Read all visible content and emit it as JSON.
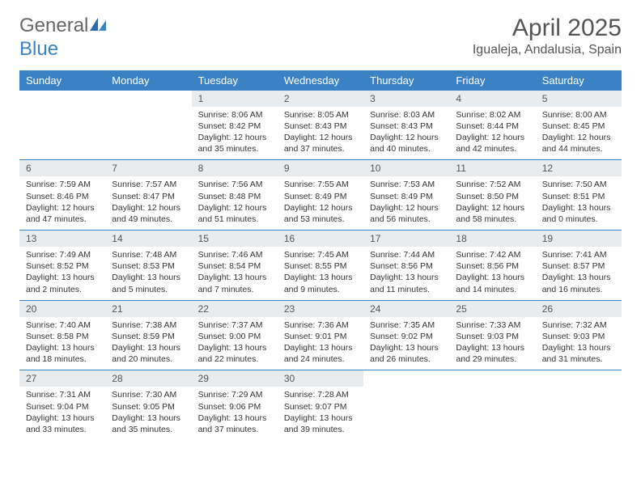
{
  "logo": {
    "text1": "General",
    "text2": "Blue"
  },
  "title": "April 2025",
  "location": "Igualeja, Andalusia, Spain",
  "colors": {
    "header_bg": "#3b82c4",
    "header_text": "#ffffff",
    "daynum_bg": "#e9ecef",
    "rule": "#3b82c4",
    "text": "#333333",
    "muted": "#555555"
  },
  "typography": {
    "title_fontsize": 30,
    "location_fontsize": 16,
    "dow_fontsize": 13,
    "daynum_fontsize": 12,
    "cell_fontsize": 10.5
  },
  "days_of_week": [
    "Sunday",
    "Monday",
    "Tuesday",
    "Wednesday",
    "Thursday",
    "Friday",
    "Saturday"
  ],
  "weeks": [
    [
      null,
      null,
      {
        "n": "1",
        "sunrise": "8:06 AM",
        "sunset": "8:42 PM",
        "daylight": "12 hours and 35 minutes."
      },
      {
        "n": "2",
        "sunrise": "8:05 AM",
        "sunset": "8:43 PM",
        "daylight": "12 hours and 37 minutes."
      },
      {
        "n": "3",
        "sunrise": "8:03 AM",
        "sunset": "8:43 PM",
        "daylight": "12 hours and 40 minutes."
      },
      {
        "n": "4",
        "sunrise": "8:02 AM",
        "sunset": "8:44 PM",
        "daylight": "12 hours and 42 minutes."
      },
      {
        "n": "5",
        "sunrise": "8:00 AM",
        "sunset": "8:45 PM",
        "daylight": "12 hours and 44 minutes."
      }
    ],
    [
      {
        "n": "6",
        "sunrise": "7:59 AM",
        "sunset": "8:46 PM",
        "daylight": "12 hours and 47 minutes."
      },
      {
        "n": "7",
        "sunrise": "7:57 AM",
        "sunset": "8:47 PM",
        "daylight": "12 hours and 49 minutes."
      },
      {
        "n": "8",
        "sunrise": "7:56 AM",
        "sunset": "8:48 PM",
        "daylight": "12 hours and 51 minutes."
      },
      {
        "n": "9",
        "sunrise": "7:55 AM",
        "sunset": "8:49 PM",
        "daylight": "12 hours and 53 minutes."
      },
      {
        "n": "10",
        "sunrise": "7:53 AM",
        "sunset": "8:49 PM",
        "daylight": "12 hours and 56 minutes."
      },
      {
        "n": "11",
        "sunrise": "7:52 AM",
        "sunset": "8:50 PM",
        "daylight": "12 hours and 58 minutes."
      },
      {
        "n": "12",
        "sunrise": "7:50 AM",
        "sunset": "8:51 PM",
        "daylight": "13 hours and 0 minutes."
      }
    ],
    [
      {
        "n": "13",
        "sunrise": "7:49 AM",
        "sunset": "8:52 PM",
        "daylight": "13 hours and 2 minutes."
      },
      {
        "n": "14",
        "sunrise": "7:48 AM",
        "sunset": "8:53 PM",
        "daylight": "13 hours and 5 minutes."
      },
      {
        "n": "15",
        "sunrise": "7:46 AM",
        "sunset": "8:54 PM",
        "daylight": "13 hours and 7 minutes."
      },
      {
        "n": "16",
        "sunrise": "7:45 AM",
        "sunset": "8:55 PM",
        "daylight": "13 hours and 9 minutes."
      },
      {
        "n": "17",
        "sunrise": "7:44 AM",
        "sunset": "8:56 PM",
        "daylight": "13 hours and 11 minutes."
      },
      {
        "n": "18",
        "sunrise": "7:42 AM",
        "sunset": "8:56 PM",
        "daylight": "13 hours and 14 minutes."
      },
      {
        "n": "19",
        "sunrise": "7:41 AM",
        "sunset": "8:57 PM",
        "daylight": "13 hours and 16 minutes."
      }
    ],
    [
      {
        "n": "20",
        "sunrise": "7:40 AM",
        "sunset": "8:58 PM",
        "daylight": "13 hours and 18 minutes."
      },
      {
        "n": "21",
        "sunrise": "7:38 AM",
        "sunset": "8:59 PM",
        "daylight": "13 hours and 20 minutes."
      },
      {
        "n": "22",
        "sunrise": "7:37 AM",
        "sunset": "9:00 PM",
        "daylight": "13 hours and 22 minutes."
      },
      {
        "n": "23",
        "sunrise": "7:36 AM",
        "sunset": "9:01 PM",
        "daylight": "13 hours and 24 minutes."
      },
      {
        "n": "24",
        "sunrise": "7:35 AM",
        "sunset": "9:02 PM",
        "daylight": "13 hours and 26 minutes."
      },
      {
        "n": "25",
        "sunrise": "7:33 AM",
        "sunset": "9:03 PM",
        "daylight": "13 hours and 29 minutes."
      },
      {
        "n": "26",
        "sunrise": "7:32 AM",
        "sunset": "9:03 PM",
        "daylight": "13 hours and 31 minutes."
      }
    ],
    [
      {
        "n": "27",
        "sunrise": "7:31 AM",
        "sunset": "9:04 PM",
        "daylight": "13 hours and 33 minutes."
      },
      {
        "n": "28",
        "sunrise": "7:30 AM",
        "sunset": "9:05 PM",
        "daylight": "13 hours and 35 minutes."
      },
      {
        "n": "29",
        "sunrise": "7:29 AM",
        "sunset": "9:06 PM",
        "daylight": "13 hours and 37 minutes."
      },
      {
        "n": "30",
        "sunrise": "7:28 AM",
        "sunset": "9:07 PM",
        "daylight": "13 hours and 39 minutes."
      },
      null,
      null,
      null
    ]
  ],
  "labels": {
    "sunrise": "Sunrise:",
    "sunset": "Sunset:",
    "daylight": "Daylight:"
  }
}
